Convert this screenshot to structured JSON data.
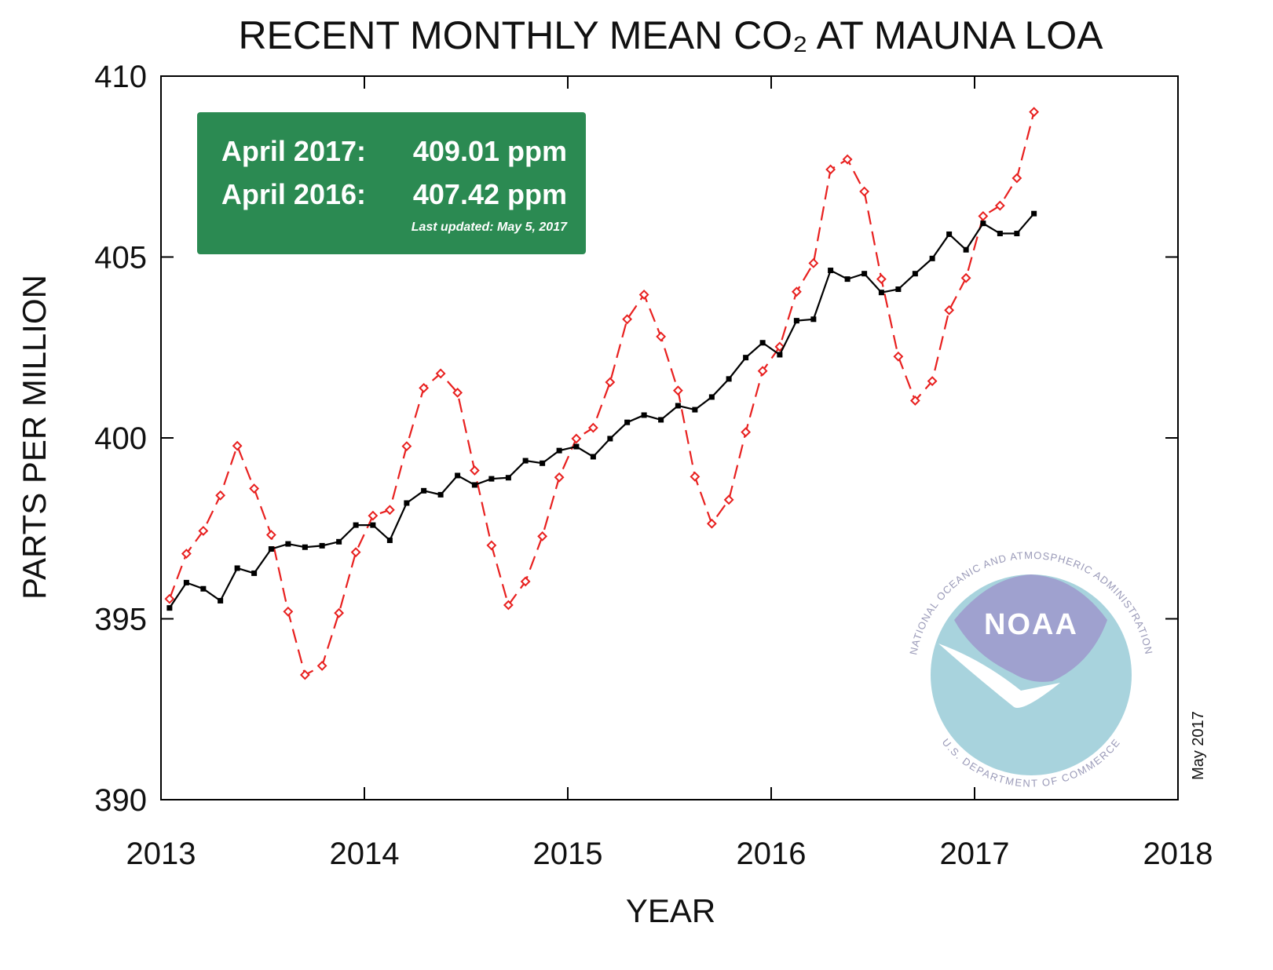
{
  "chart_data": {
    "type": "line",
    "title": "RECENT MONTHLY MEAN CO₂ AT MAUNA LOA",
    "x_label": "YEAR",
    "y_label": "PARTS PER MILLION",
    "x": [
      2013.042,
      2013.125,
      2013.208,
      2013.292,
      2013.375,
      2013.458,
      2013.542,
      2013.625,
      2013.708,
      2013.792,
      2013.875,
      2013.958,
      2014.042,
      2014.125,
      2014.208,
      2014.292,
      2014.375,
      2014.458,
      2014.542,
      2014.625,
      2014.708,
      2014.792,
      2014.875,
      2014.958,
      2015.042,
      2015.125,
      2015.208,
      2015.292,
      2015.375,
      2015.458,
      2015.542,
      2015.625,
      2015.708,
      2015.792,
      2015.875,
      2015.958,
      2016.042,
      2016.125,
      2016.208,
      2016.292,
      2016.375,
      2016.458,
      2016.542,
      2016.625,
      2016.708,
      2016.792,
      2016.875,
      2016.958,
      2017.042,
      2017.125,
      2017.208,
      2017.292
    ],
    "series": [
      {
        "color": "#e8201f",
        "dashed": true,
        "marker": "diamond",
        "values": [
          395.55,
          396.8,
          397.43,
          398.41,
          399.78,
          398.6,
          397.32,
          395.2,
          393.45,
          393.7,
          395.16,
          396.84,
          397.85,
          398.01,
          399.77,
          401.38,
          401.78,
          401.25,
          399.1,
          397.03,
          395.38,
          396.03,
          397.28,
          398.91,
          399.98,
          400.28,
          401.54,
          403.28,
          403.96,
          402.8,
          401.31,
          398.93,
          397.63,
          398.29,
          400.16,
          401.85,
          402.52,
          404.04,
          404.83,
          407.42,
          407.7,
          406.81,
          404.39,
          402.25,
          401.03,
          401.57,
          403.53,
          404.42,
          406.13,
          406.42,
          407.18,
          409.01
        ]
      },
      {
        "color": "#000000",
        "dashed": false,
        "marker": "square",
        "values": [
          395.3,
          396.0,
          395.83,
          395.5,
          396.4,
          396.26,
          396.93,
          397.07,
          396.98,
          397.02,
          397.13,
          397.59,
          397.59,
          397.17,
          398.2,
          398.54,
          398.43,
          398.96,
          398.7,
          398.87,
          398.9,
          399.37,
          399.3,
          399.65,
          399.76,
          399.48,
          399.98,
          400.43,
          400.63,
          400.5,
          400.89,
          400.78,
          401.13,
          401.63,
          402.22,
          402.63,
          402.3,
          403.24,
          403.28,
          404.63,
          404.39,
          404.54,
          404.02,
          404.11,
          404.54,
          404.96,
          405.63,
          405.2,
          405.93,
          405.65,
          405.65,
          406.2
        ]
      }
    ],
    "xlim": [
      2013,
      2018
    ],
    "xticks": [
      2013,
      2014,
      2015,
      2016,
      2017,
      2018
    ],
    "ylim": [
      390,
      410
    ],
    "yticks": [
      390,
      395,
      400,
      405,
      410
    ],
    "annotations": {
      "box": [
        {
          "label": "April 2017:",
          "value": "409.01 ppm"
        },
        {
          "label": "April 2016:",
          "value": "407.42 ppm"
        }
      ],
      "updated": "Last updated: May 5, 2017",
      "stamp": "May 2017"
    },
    "logo": {
      "name": "NOAA",
      "ring_top": "NATIONAL OCEANIC AND ATMOSPHERIC ADMINISTRATION",
      "ring_bottom": "U.S. DEPARTMENT OF COMMERCE"
    }
  }
}
